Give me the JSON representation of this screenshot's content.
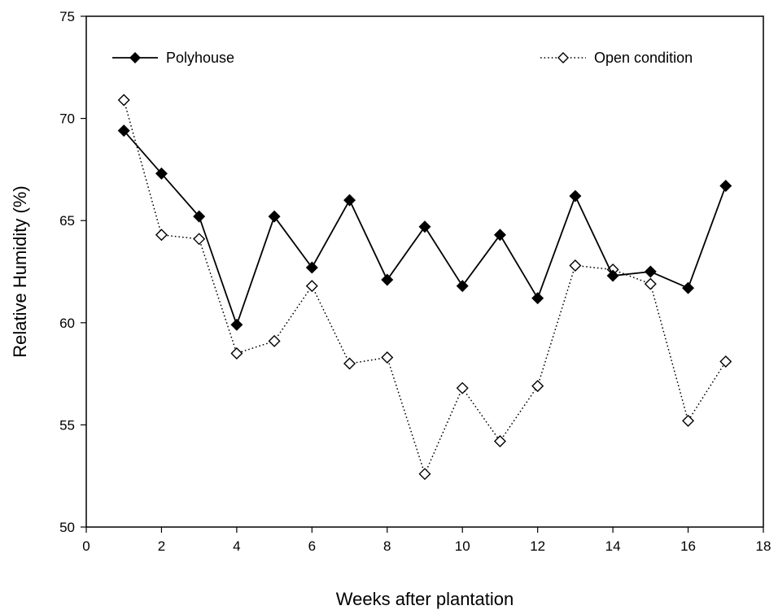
{
  "chart_data": {
    "type": "line",
    "title": "",
    "xlabel": "Weeks after plantation",
    "ylabel": "Relative Humidity (%)",
    "xlim": [
      0,
      18
    ],
    "ylim": [
      50,
      75
    ],
    "xticks": [
      0,
      2,
      4,
      6,
      8,
      10,
      12,
      14,
      16,
      18
    ],
    "yticks": [
      50,
      55,
      60,
      65,
      70,
      75
    ],
    "grid": false,
    "legend_placement": "top",
    "x": [
      1,
      2,
      3,
      4,
      5,
      6,
      7,
      8,
      9,
      10,
      11,
      12,
      13,
      14,
      15,
      16,
      17
    ],
    "series": [
      {
        "name": "Polyhouse",
        "line_style": "solid",
        "marker": "filled-diamond",
        "color": "#000000",
        "values": [
          69.4,
          67.3,
          65.2,
          59.9,
          65.2,
          62.7,
          66.0,
          62.1,
          64.7,
          61.8,
          64.3,
          61.2,
          66.2,
          62.3,
          62.5,
          61.7,
          66.7
        ]
      },
      {
        "name": "Open condition",
        "line_style": "dotted",
        "marker": "open-diamond",
        "color": "#000000",
        "values": [
          70.9,
          64.3,
          64.1,
          58.5,
          59.1,
          61.8,
          58.0,
          58.3,
          52.6,
          56.8,
          54.2,
          56.9,
          62.8,
          62.6,
          61.9,
          55.2,
          58.1
        ]
      }
    ]
  }
}
